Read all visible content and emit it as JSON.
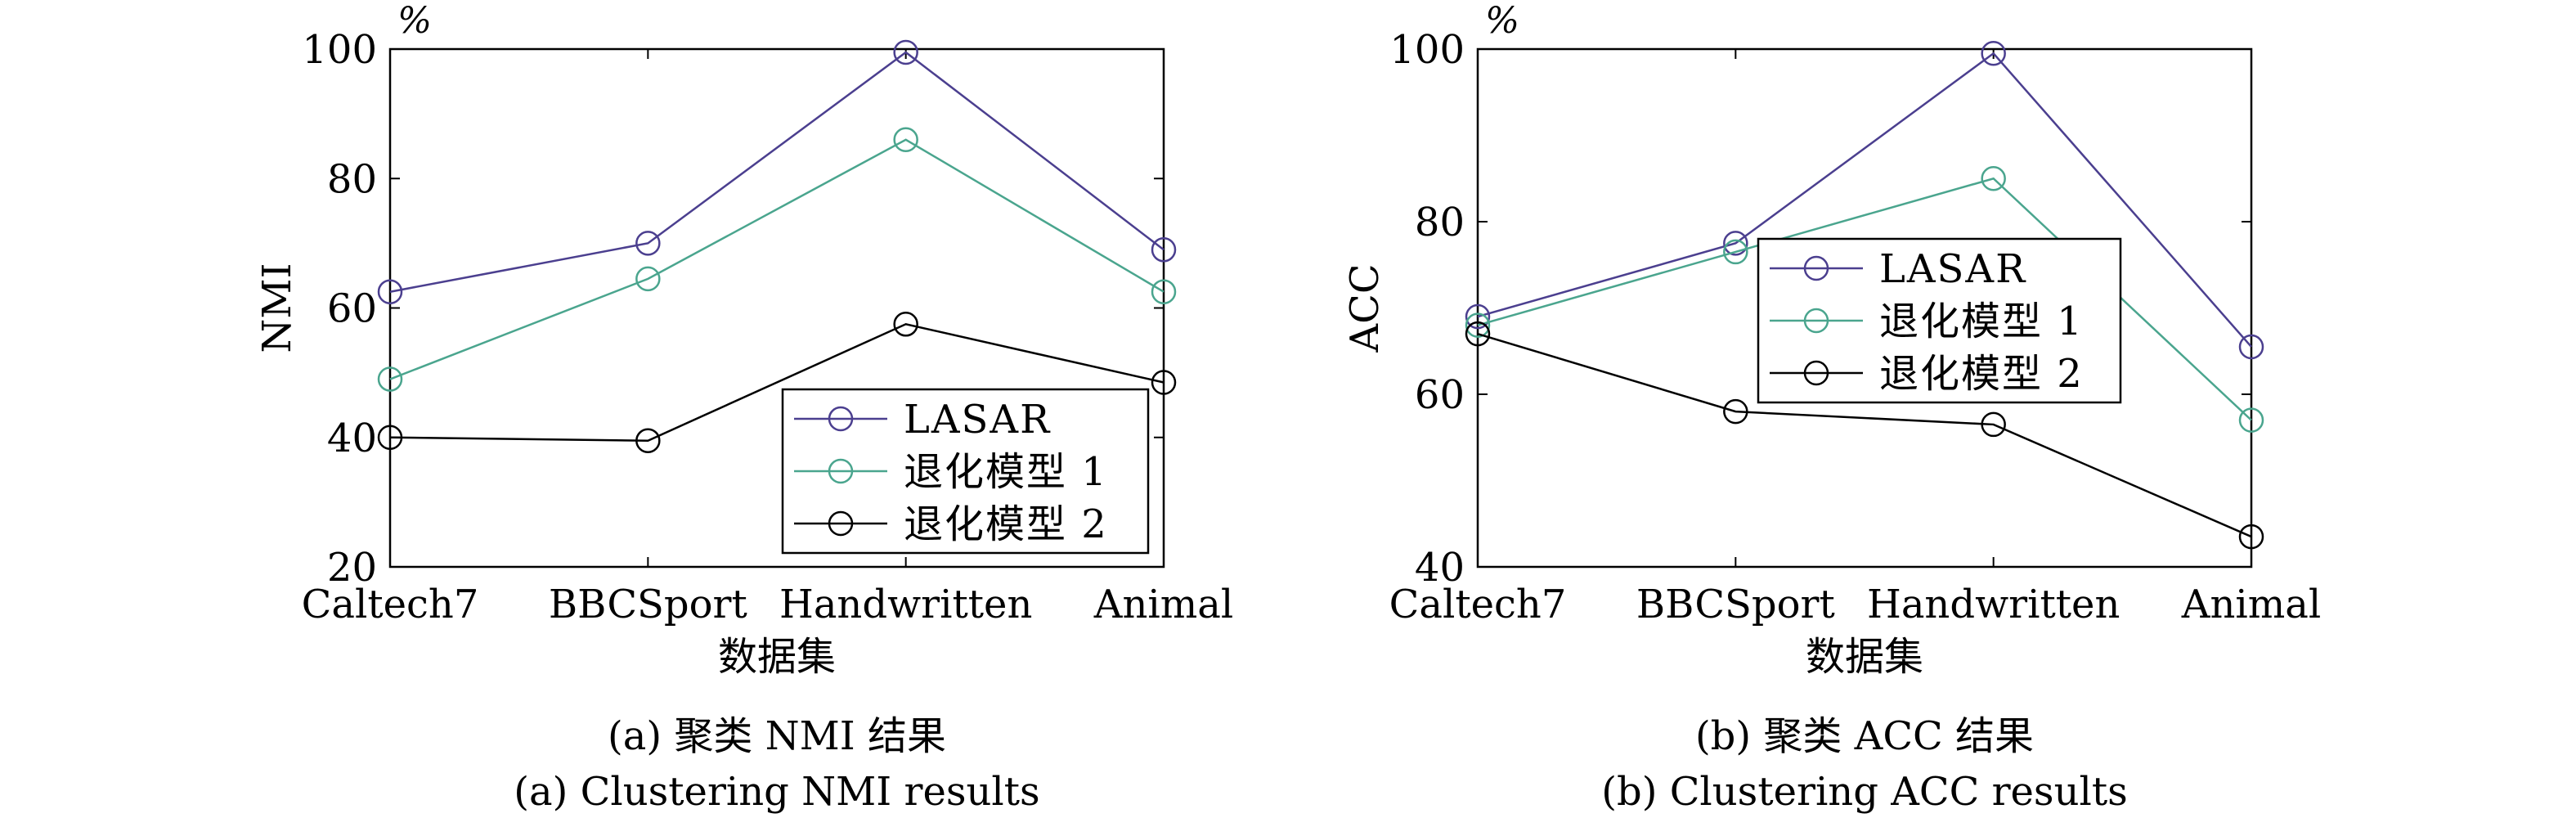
{
  "chart_data": [
    {
      "type": "line",
      "unit_label": "%",
      "xlabel": "数据集",
      "ylabel": "NMI",
      "categories": [
        "Caltech7",
        "BBCSport",
        "Handwritten",
        "Animal"
      ],
      "ylim": [
        20,
        100
      ],
      "yticks": [
        "20",
        "40",
        "60",
        "80",
        "100"
      ],
      "grid": false,
      "legend_position": "bottom-right",
      "caption_cn": "(a) 聚类 NMI 结果",
      "caption_en": "(a) Clustering NMI results",
      "series": [
        {
          "name": "LASAR",
          "color": "#4b3f8f",
          "values": [
            62.5,
            70,
            99.5,
            69
          ]
        },
        {
          "name": "退化模型 1",
          "color": "#4aa58e",
          "values": [
            49,
            64.5,
            86,
            62.5
          ]
        },
        {
          "name": "退化模型 2",
          "color": "#000000",
          "values": [
            40,
            39.5,
            57.5,
            48.5
          ]
        }
      ]
    },
    {
      "type": "line",
      "unit_label": "%",
      "xlabel": "数据集",
      "ylabel": "ACC",
      "categories": [
        "Caltech7",
        "BBCSport",
        "Handwritten",
        "Animal"
      ],
      "ylim": [
        40,
        100
      ],
      "yticks": [
        "40",
        "60",
        "80",
        "100"
      ],
      "grid": false,
      "legend_position": "top-left",
      "caption_cn": "(b) 聚类 ACC 结果",
      "caption_en": "(b) Clustering ACC results",
      "series": [
        {
          "name": "LASAR",
          "color": "#4b3f8f",
          "values": [
            69,
            77.5,
            99.5,
            65.5
          ]
        },
        {
          "name": "退化模型 1",
          "color": "#4aa58e",
          "values": [
            68,
            76.5,
            85,
            57
          ]
        },
        {
          "name": "退化模型 2",
          "color": "#000000",
          "values": [
            67,
            58,
            56.5,
            43.5
          ]
        }
      ]
    }
  ]
}
